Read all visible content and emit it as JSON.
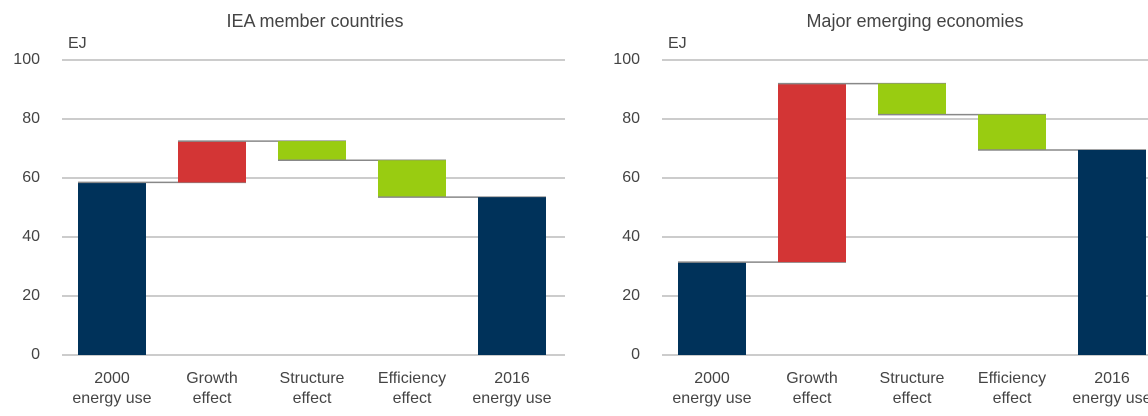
{
  "chart_data": [
    {
      "type": "waterfall",
      "title": "IEA member countries",
      "y_label": "EJ",
      "categories": [
        [
          "2000",
          "energy use"
        ],
        [
          "Growth",
          "effect"
        ],
        [
          "Structure",
          "effect"
        ],
        [
          "Efficiency",
          "effect"
        ],
        [
          "2016",
          "energy use"
        ]
      ],
      "values": [
        58.5,
        14,
        -6.5,
        -12.5,
        53.5
      ],
      "colors": {
        "total": "#00325a",
        "increase": "#d33535",
        "decrease": "#99cc11"
      },
      "ylim": [
        0,
        100
      ],
      "yticks": [
        0,
        20,
        40,
        60,
        80,
        100
      ],
      "grid": true
    },
    {
      "type": "waterfall",
      "title": "Major emerging economies",
      "y_label": "EJ",
      "categories": [
        [
          "2000",
          "energy use"
        ],
        [
          "Growth",
          "effect"
        ],
        [
          "Structure",
          "effect"
        ],
        [
          "Efficiency",
          "effect"
        ],
        [
          "2016",
          "energy use"
        ]
      ],
      "values": [
        31.5,
        60.5,
        -10.5,
        -12,
        69.5
      ],
      "colors": {
        "total": "#00325a",
        "increase": "#d33535",
        "decrease": "#99cc11"
      },
      "ylim": [
        0,
        100
      ],
      "yticks": [
        0,
        20,
        40,
        60,
        80,
        100
      ],
      "grid": true
    }
  ]
}
